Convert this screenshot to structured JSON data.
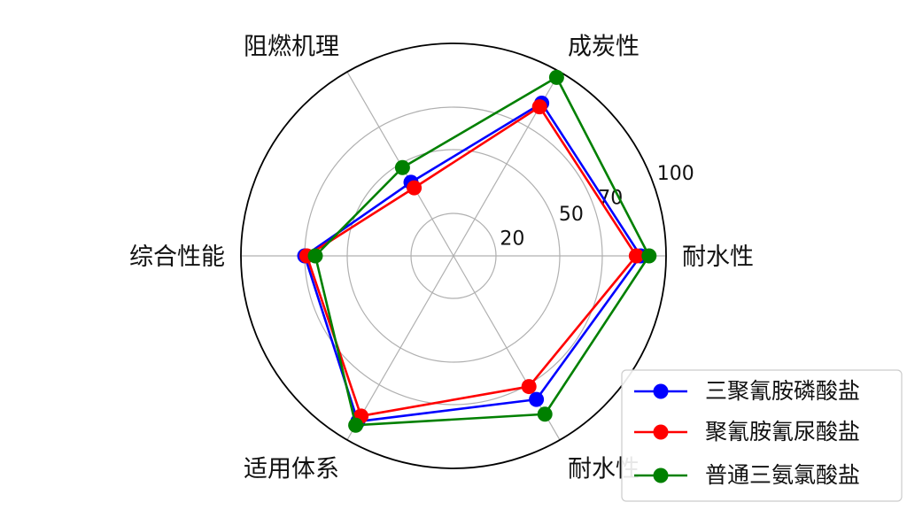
{
  "chart_data": {
    "type": "radar",
    "categories": [
      "耐水性",
      "成炭性",
      "阻燃机理",
      "综合性能",
      "适用体系",
      "耐水性"
    ],
    "rticks": [
      20,
      50,
      70,
      100
    ],
    "rlim": [
      0,
      100
    ],
    "grid": true,
    "legend_position": "bottom-right",
    "series": [
      {
        "name": "三聚氰胺磷酸盐",
        "color": "#0000ff",
        "values": [
          88,
          83,
          40,
          70,
          90,
          78
        ]
      },
      {
        "name": "聚氰胺氰尿酸盐",
        "color": "#ff0000",
        "values": [
          86,
          81,
          37,
          69,
          87,
          71
        ]
      },
      {
        "name": "普通三氨氯酸盐",
        "color": "#008000",
        "values": [
          92,
          97,
          48,
          65,
          92,
          86
        ]
      }
    ]
  }
}
